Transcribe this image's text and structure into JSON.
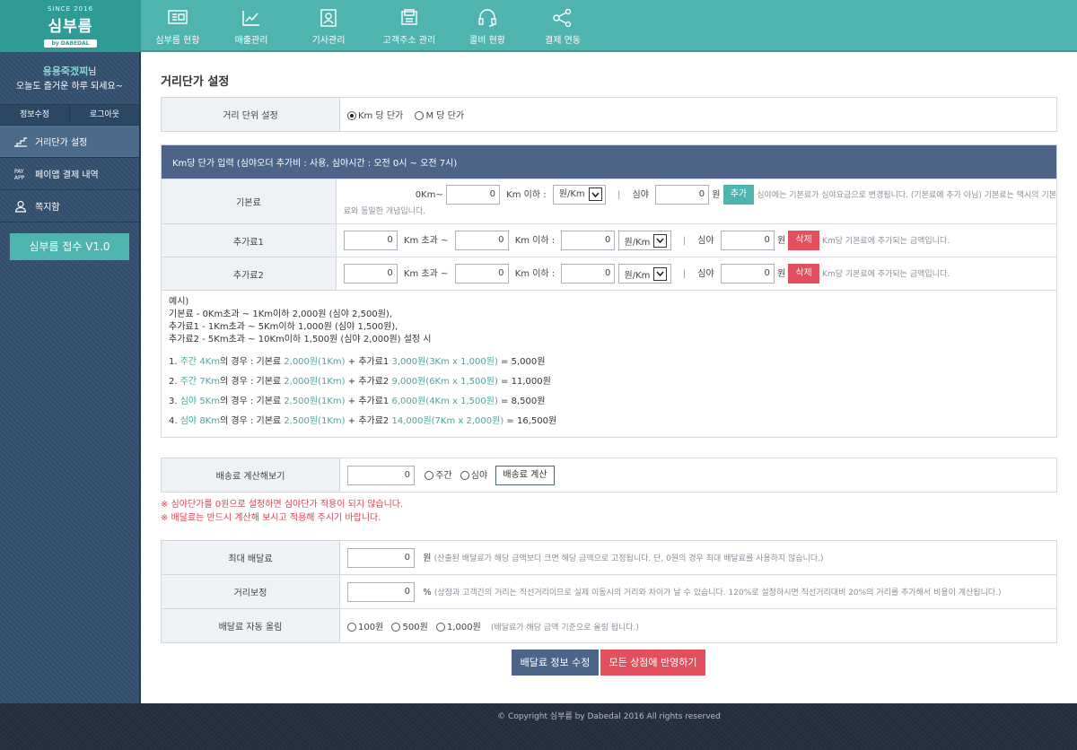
{
  "brand": {
    "since": "SINCE 2016",
    "name": "심부름",
    "tagline": "by DABEDAL"
  },
  "nav": [
    {
      "label": "심부름 현황",
      "icon": "monitor-list-icon"
    },
    {
      "label": "매출관리",
      "icon": "chart-icon"
    },
    {
      "label": "기사관리",
      "icon": "id-card-icon"
    },
    {
      "label": "고객주소 관리",
      "icon": "address-book-icon"
    },
    {
      "label": "콜비 현황",
      "icon": "headset-icon"
    },
    {
      "label": "결제 연동",
      "icon": "share-icon"
    }
  ],
  "user": {
    "name": "용용죽겠찌",
    "suffix": "님",
    "greeting": "오늘도 즐거운 하루 되세요~"
  },
  "account": {
    "edit": "정보수정",
    "logout": "로그아웃"
  },
  "sidebar": [
    {
      "label": "거리단가 설정",
      "icon": "chart-step-icon"
    },
    {
      "label": "페이앱 결제 내역",
      "icon": "payapp-icon"
    },
    {
      "label": "쪽지함",
      "icon": "user-icon"
    }
  ],
  "sidebar_button": "심부름 접수 V1.0",
  "page_title": "거리단가 설정",
  "unit": {
    "label": "거리 단위 설정",
    "opt_km": "Km 당 단가",
    "opt_m": "M 당 단가"
  },
  "km_header": "Km당 단가 입력 (심야오더 추가비 : 사용, 심야시간 : 오전 0시 ~ 오전 7시)",
  "basic": {
    "label": "기본료",
    "from_text": "0Km~",
    "upto_value": "0",
    "upto_text": "Km 이하 :",
    "unit_select": "원/Km",
    "night_label": "심야",
    "night_value": "0",
    "won": "원",
    "add_button": "추가",
    "note1": "심야에는 기본료가 심야요금으로 변경됩니다. (기본료에 추가 아님) 기본료는 택시의 기본",
    "note2": "료와 동일한 개념입니다."
  },
  "extras": [
    {
      "label": "추가료1",
      "from_value": "0",
      "over_text": "Km 초과 ~",
      "upto_value": "0",
      "upto_text": "Km 이하 :",
      "price_value": "0",
      "unit_select": "원/Km",
      "night_label": "심야",
      "night_value": "0",
      "won": "원",
      "del_button": "삭제",
      "note": "Km당 기본료에 추가되는 금액입니다."
    },
    {
      "label": "추가료2",
      "from_value": "0",
      "over_text": "Km 초과 ~",
      "upto_value": "0",
      "upto_text": "Km 이하 :",
      "price_value": "0",
      "unit_select": "원/Km",
      "night_label": "심야",
      "night_value": "0",
      "won": "원",
      "del_button": "삭제",
      "note": "Km당 기본료에 추가되는 금액입니다."
    }
  ],
  "example": {
    "intro": [
      "예시)",
      "기본료 - 0Km초과 ~ 1Km이하 2,000원 (심야 2,500원),",
      "추가료1 - 1Km초과 ~ 5Km이하 1,000원 (심야 1,500원),",
      "추가료2 - 5Km초과 ~ 10Km이하 1,500원 (심야 2,000원) 설정 시"
    ],
    "lines": [
      {
        "n": "1.",
        "a": "주간 4Km",
        "b": "의 경우 : 기본료 ",
        "c": "2,000원(1Km)",
        "d": " + 추가료1 ",
        "e": "3,000원(3Km x 1,000원)",
        "f": " = 5,000원"
      },
      {
        "n": "2.",
        "a": "주간 7Km",
        "b": "의 경우 : 기본료 ",
        "c": "2,000원(1Km)",
        "d": " + 추가료2 ",
        "e": "9,000원(6Km x 1,500원)",
        "f": " = 11,000원"
      },
      {
        "n": "3.",
        "a": "심야 5Km",
        "b": "의 경우 : 기본료 ",
        "c": "2,500원(1Km)",
        "d": " + 추가료1 ",
        "e": "6,000원(4Km x 1,500원)",
        "f": " = 8,500원"
      },
      {
        "n": "4.",
        "a": "심야 8Km",
        "b": "의 경우 : 기본료 ",
        "c": "2,500원(1Km)",
        "d": " + 추가료2 ",
        "e": "14,000원(7Km x 2,000원)",
        "f": " = 16,500원"
      }
    ]
  },
  "calc": {
    "label": "배송료 계산해보기",
    "value": "0",
    "opt_day": "주간",
    "opt_night": "심야",
    "button": "배송료 계산"
  },
  "warnings": [
    "※ 심야단가를 0원으로 설정하면 심야단가 적용이 되지 않습니다.",
    "※ 배달료는 반드시 계산해 보시고 적용해 주시기 바랍니다."
  ],
  "max_fee": {
    "label": "최대 배달료",
    "value": "0",
    "unit": "원",
    "note": "(산출된 배달료가 해당 금액보다 크면 해당 금액으로 고정됩니다. 단, 0원의 경우 최대 배달료를 사용하지 않습니다.)"
  },
  "dist_adj": {
    "label": "거리보정",
    "value": "0",
    "unit": "%",
    "note": "(상점과 고객간의 거리는 직선거리이므로 실제 이동시의 거리와 차이가 날 수 있습니다. 120%로 설정하시면 직선거리대비 20%의 거리를 추가해서 비용이 계산됩니다.)"
  },
  "round": {
    "label": "배달료 자동 올림",
    "opt1": "100원",
    "opt2": "500원",
    "opt3": "1,000원",
    "note": "(배달료가 해당 금액 기준으로 올림 됩니다.)"
  },
  "buttons": {
    "save": "배달료 정보 수정",
    "apply": "모든 상점에 반영하기"
  },
  "footer": "© Copyright 심부름 by Dabedal 2016 All rights reserved"
}
